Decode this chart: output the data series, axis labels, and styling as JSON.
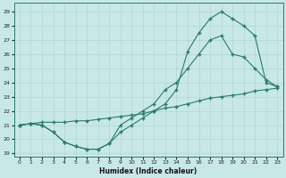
{
  "xlabel": "Humidex (Indice chaleur)",
  "bg_color": "#c8e8e8",
  "grid_color": "#b0d4d4",
  "line_color": "#2a7a6a",
  "xlim": [
    -0.5,
    23.5
  ],
  "ylim": [
    18.8,
    29.6
  ],
  "xticks": [
    0,
    1,
    2,
    3,
    4,
    5,
    6,
    7,
    8,
    9,
    10,
    11,
    12,
    13,
    14,
    15,
    16,
    17,
    18,
    19,
    20,
    21,
    22,
    23
  ],
  "yticks": [
    19,
    20,
    21,
    22,
    23,
    24,
    25,
    26,
    27,
    28,
    29
  ],
  "line1_x": [
    0,
    1,
    2,
    3,
    4,
    5,
    6,
    7,
    8,
    9,
    10,
    11,
    12,
    13,
    14,
    15,
    16,
    17,
    18,
    19,
    20,
    21,
    22,
    23
  ],
  "line1_y": [
    21.0,
    21.1,
    21.2,
    21.2,
    21.2,
    21.3,
    21.3,
    21.4,
    21.5,
    21.6,
    21.7,
    21.8,
    22.0,
    22.2,
    22.3,
    22.5,
    22.7,
    22.9,
    23.0,
    23.1,
    23.2,
    23.4,
    23.5,
    23.6
  ],
  "line2_x": [
    0,
    1,
    2,
    3,
    4,
    5,
    6,
    7,
    8,
    9,
    10,
    11,
    12,
    13,
    14,
    15,
    16,
    17,
    18,
    19,
    20,
    21,
    22,
    23
  ],
  "line2_y": [
    21.0,
    21.1,
    21.0,
    20.5,
    19.8,
    19.5,
    19.3,
    19.3,
    19.7,
    20.5,
    21.0,
    21.5,
    22.0,
    22.5,
    23.5,
    26.2,
    27.5,
    28.5,
    29.0,
    28.5,
    28.0,
    27.3,
    24.0,
    23.7
  ],
  "line3_x": [
    0,
    1,
    2,
    3,
    4,
    5,
    6,
    7,
    8,
    9,
    10,
    11,
    12,
    13,
    14,
    15,
    16,
    17,
    18,
    19,
    20,
    21,
    22,
    23
  ],
  "line3_y": [
    21.0,
    21.1,
    21.0,
    20.5,
    19.8,
    19.5,
    19.3,
    19.3,
    19.7,
    21.0,
    21.5,
    22.0,
    22.5,
    23.5,
    24.0,
    25.0,
    26.0,
    27.0,
    27.3,
    26.0,
    25.8,
    25.0,
    24.2,
    23.7
  ]
}
